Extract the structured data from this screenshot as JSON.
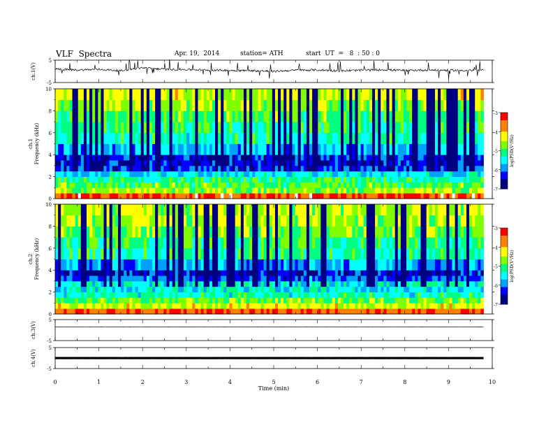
{
  "header": {
    "title": "VLF  Spectra",
    "date": "Apr. 19,  2014",
    "station": "station= ATH",
    "start": "start  UT  =   8  : 50 : 0"
  },
  "chart_data": [
    {
      "type": "line",
      "panel": "ch1-waveform",
      "ylabel": "ch.1(V)",
      "ylim": [
        -5,
        5
      ],
      "ytick_labels": [
        "5",
        "-5"
      ],
      "x_unit": "min",
      "x": [
        0,
        0.5,
        1,
        1.5,
        2,
        2.5,
        3,
        3.5,
        4,
        4.5,
        5,
        5.5,
        6,
        6.5,
        7,
        7.5,
        8,
        8.5,
        9,
        9.5,
        9.8
      ],
      "values": [
        1.0,
        0.6,
        0.9,
        0.3,
        1.6,
        0.9,
        0.8,
        0.6,
        0.4,
        0.3,
        0.0,
        0.5,
        0.6,
        0.2,
        0.5,
        0.7,
        0.4,
        0.6,
        0.5,
        0.4,
        0.5
      ]
    },
    {
      "type": "heatmap",
      "panel": "ch1-spectrogram",
      "ylabel": "ch.1\nFrequency  (kHz)",
      "ylim": [
        0,
        10
      ],
      "ytick_labels": [
        "0",
        "2",
        "4",
        "6",
        "8",
        "10"
      ],
      "colorbar": {
        "label": "log(PSD(V²/Hz)",
        "range": [
          -7,
          -3
        ],
        "tick_labels": [
          "-3",
          "-4",
          "-5",
          "-6",
          "-7"
        ]
      },
      "freq_bands_khz": [
        0,
        0.5,
        1,
        1.5,
        2,
        2.5,
        3,
        3.5,
        4,
        5,
        6,
        7,
        8,
        9,
        10
      ],
      "band_log_psd": [
        -3.4,
        -4.6,
        -4.9,
        -5.2,
        -5.6,
        -6.2,
        -6.4,
        -6.3,
        -5.8,
        -5.3,
        -5.1,
        -4.9,
        -4.6,
        -4.4
      ]
    },
    {
      "type": "heatmap",
      "panel": "ch2-spectrogram",
      "ylabel": "ch.2\nFrequency  (kHz)",
      "ylim": [
        0,
        10
      ],
      "ytick_labels": [
        "0",
        "2",
        "4",
        "6",
        "8",
        "10"
      ],
      "colorbar": {
        "label": "log(PSD(V²/Hz)",
        "range": [
          -7,
          -3
        ],
        "tick_labels": [
          "-3",
          "-4",
          "-5",
          "-6",
          "-7"
        ]
      },
      "freq_bands_khz": [
        0,
        0.5,
        1,
        1.5,
        2,
        2.5,
        3,
        3.5,
        4,
        5,
        6,
        7,
        8,
        9,
        10
      ],
      "band_log_psd": [
        -3.5,
        -4.4,
        -4.8,
        -5.3,
        -5.5,
        -5.4,
        -6.1,
        -6.4,
        -5.9,
        -5.2,
        -5.1,
        -4.8,
        -4.6,
        -4.5
      ]
    },
    {
      "type": "line",
      "panel": "ch3-waveform",
      "ylabel": "ch.3(V)",
      "ylim": [
        -5,
        5
      ],
      "ytick_labels": [
        "5",
        "-5"
      ],
      "x": [
        0,
        9.8
      ],
      "values": [
        1.5,
        1.5
      ]
    },
    {
      "type": "line",
      "panel": "ch4-waveform",
      "ylabel": "ch.4(V)",
      "ylim": [
        -5,
        5
      ],
      "ytick_labels": [
        "5",
        "-5"
      ],
      "x": [
        0,
        9.8
      ],
      "values": [
        0.0,
        0.0
      ]
    }
  ],
  "xaxis": {
    "label": "Time  (min)",
    "xlim": [
      0,
      10
    ],
    "tick_labels": [
      "0",
      "1",
      "2",
      "3",
      "4",
      "5",
      "6",
      "7",
      "8",
      "9",
      "10"
    ]
  },
  "colors": {
    "colormap": [
      "#000080",
      "#0000ff",
      "#00a0ff",
      "#00ffff",
      "#00ff80",
      "#80ff00",
      "#ffff00",
      "#ff8000",
      "#ff0000",
      "#ffffff"
    ]
  }
}
